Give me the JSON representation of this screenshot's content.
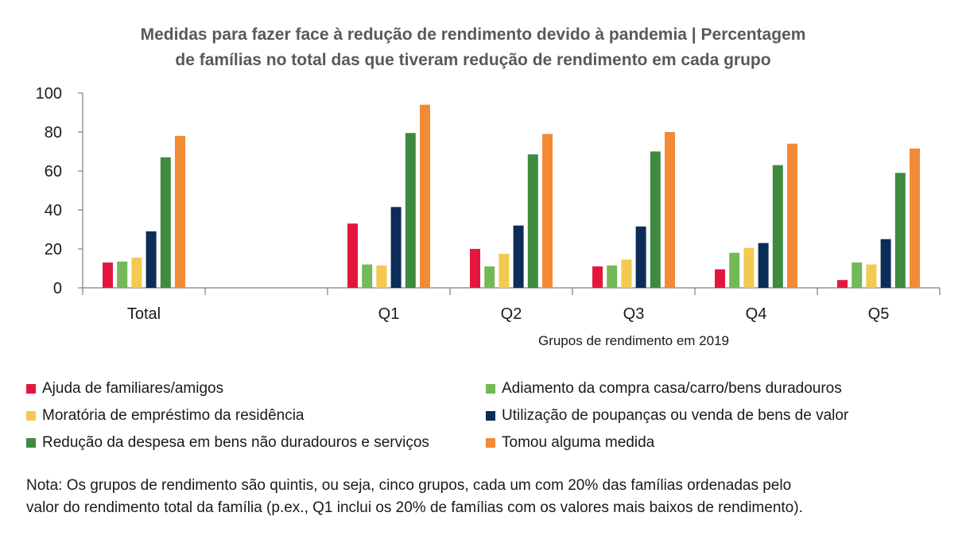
{
  "chart_data": {
    "type": "bar",
    "title_lines": [
      "Medidas para fazer face à redução de rendimento devido à pandemia | Percentagem",
      "de famílias no total das que tiveram redução de rendimento em cada grupo"
    ],
    "xlabel": "Grupos de rendimento em 2019",
    "ylabel": "",
    "ylim": [
      0,
      100
    ],
    "yticks": [
      0,
      20,
      40,
      60,
      80,
      100
    ],
    "categories": [
      "Total",
      "",
      "Q1",
      "Q2",
      "Q3",
      "Q4",
      "Q5"
    ],
    "series": [
      {
        "name": "Ajuda de familiares/amigos",
        "color": "#e3173e",
        "values": [
          13,
          null,
          33,
          20,
          11,
          9.5,
          4
        ]
      },
      {
        "name": "Adiamento da compra casa/carro/bens duradouros",
        "color": "#74b857",
        "values": [
          13.5,
          null,
          12,
          11,
          11.5,
          18,
          13
        ]
      },
      {
        "name": "Moratória de empréstimo da residência",
        "color": "#f4c94f",
        "values": [
          15.5,
          null,
          11.5,
          17.5,
          14.5,
          20.5,
          12
        ]
      },
      {
        "name": "Utilização de poupanças ou venda de bens de valor",
        "color": "#0c2d57",
        "values": [
          29,
          null,
          41.5,
          32,
          31.5,
          23,
          25
        ]
      },
      {
        "name": "Redução da despesa em bens não duradouros e serviços",
        "color": "#3e8a3e",
        "values": [
          67,
          null,
          79.5,
          68.5,
          70,
          63,
          59
        ]
      },
      {
        "name": "Tomou alguma medida",
        "color": "#f28a36",
        "values": [
          78,
          null,
          94,
          79,
          80,
          74,
          71.5
        ]
      }
    ],
    "note_lines": [
      "Nota: Os grupos de rendimento são quintis, ou seja, cinco grupos, cada um com 20% das famílias ordenadas pelo",
      "valor do rendimento total da família (p.ex., Q1 inclui os 20% de famílias com os valores mais baixos de rendimento)."
    ]
  }
}
